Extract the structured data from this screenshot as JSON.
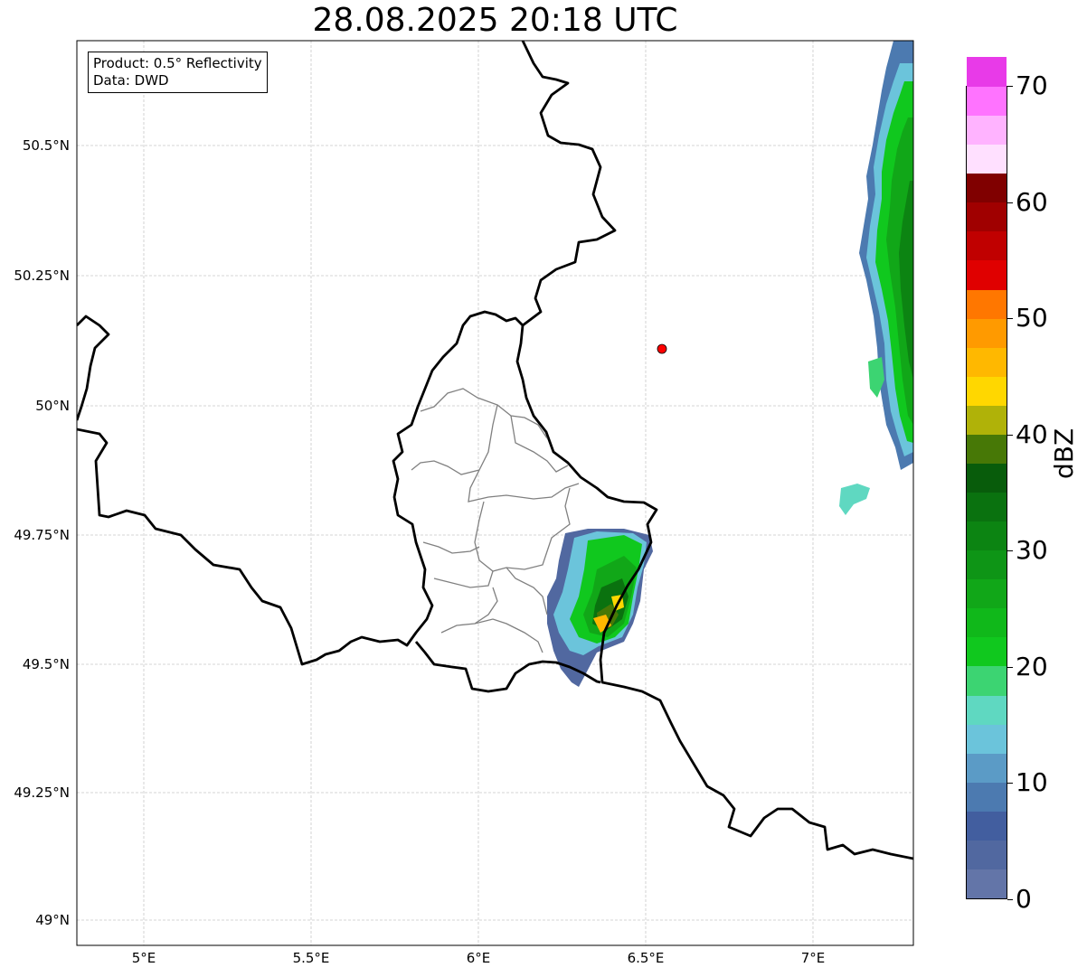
{
  "title": "28.08.2025 20:18 UTC",
  "info": {
    "line1": "Product: 0.5° Reflectivity",
    "line2": "Data: DWD"
  },
  "lat_labels": [
    "50.5°N",
    "50.25°N",
    "50°N",
    "49.75°N",
    "49.5°N",
    "49.25°N",
    "49°N"
  ],
  "lon_labels": [
    "5°E",
    "5.5°E",
    "6°E",
    "6.5°E",
    "7°E"
  ],
  "colorbar": {
    "unit": "dBZ",
    "ticks": [
      "0",
      "10",
      "20",
      "30",
      "40",
      "50",
      "60",
      "70"
    ],
    "colors": [
      "#6375a8",
      "#5168a0",
      "#425e9f",
      "#4c7ab0",
      "#5b9bc6",
      "#6bc4db",
      "#5fd8c1",
      "#3cd472",
      "#10c81e",
      "#10b81a",
      "#11a718",
      "#0e9516",
      "#0c8412",
      "#0a720f",
      "#085c0b",
      "#477806",
      "#b0b208",
      "#ffd700",
      "#ffb800",
      "#ff9a00",
      "#ff7700",
      "#e00000",
      "#c00000",
      "#a00000",
      "#800000",
      "#ffe0ff",
      "#ffb3ff",
      "#ff73ff",
      "#e83ae8"
    ]
  },
  "map_points": {
    "radar_site": {
      "lat": 50.11,
      "lon": 6.548,
      "color": "#ff0000"
    }
  }
}
